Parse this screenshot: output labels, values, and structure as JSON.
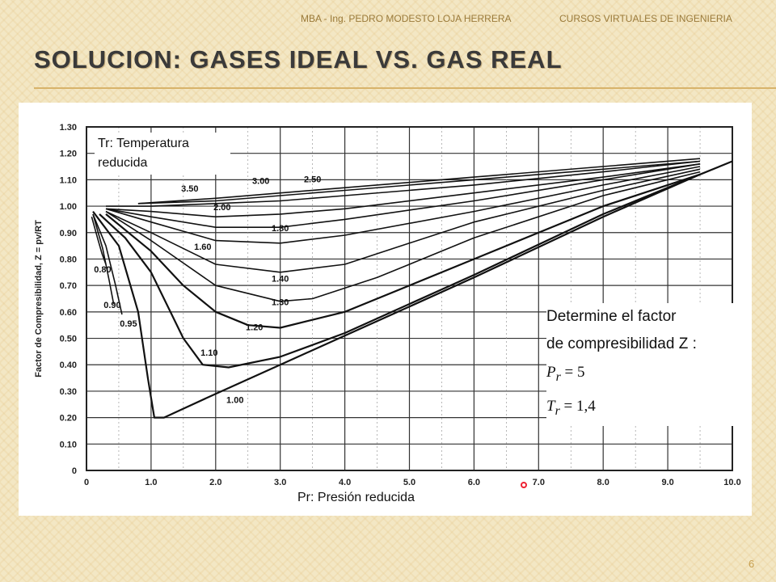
{
  "header": {
    "author": "MBA - Ing. PEDRO MODESTO LOJA HERRERA",
    "course": "CURSOS VIRTUALES DE INGENIERIA"
  },
  "slide": {
    "title": "SOLUCION: GASES IDEAL VS. GAS REAL",
    "page_number": "6"
  },
  "callouts": {
    "tr_line1": "Tr: Temperatura",
    "tr_line2": "reducida",
    "pr_label": "Pr: Presión reducida"
  },
  "problem": {
    "line1": "Determine el factor",
    "line2": "de compresibilidad Z :",
    "pr_symbol": "P",
    "pr_sub": "r",
    "pr_value": "= 5",
    "tr_symbol": "T",
    "tr_sub": "r",
    "tr_value": "= 1,4"
  },
  "colors": {
    "slide_bg": "#f3e7c4",
    "accent": "#d8b36a",
    "title_text": "#3a3a3a",
    "cursor": "#e23333"
  },
  "chart_data": {
    "type": "line",
    "xlabel": "",
    "ylabel": "Factor de Compresibilidad, Z = pv/RT",
    "xlim": [
      0,
      10
    ],
    "ylim": [
      0,
      1.3
    ],
    "x_ticks": [
      "0",
      "1.0",
      "2.0",
      "3.0",
      "4.0",
      "5.0",
      "6.0",
      "7.0",
      "8.0",
      "9.0",
      "10.0"
    ],
    "y_ticks": [
      "0",
      "0.10",
      "0.20",
      "0.30",
      "0.40",
      "0.50",
      "0.60",
      "0.70",
      "0.80",
      "0.90",
      "1.00",
      "1.10",
      "1.20",
      "1.30"
    ],
    "grid": true,
    "series": [
      {
        "name": "3.50",
        "x": [
          0.8,
          2.0,
          4.0,
          6.0,
          8.0,
          9.5
        ],
        "y": [
          1.01,
          1.03,
          1.07,
          1.11,
          1.15,
          1.18
        ]
      },
      {
        "name": "3.00",
        "x": [
          0.8,
          2.0,
          4.0,
          6.0,
          8.0,
          9.5
        ],
        "y": [
          1.01,
          1.02,
          1.06,
          1.1,
          1.14,
          1.17
        ]
      },
      {
        "name": "2.50",
        "x": [
          0.3,
          1.0,
          2.0,
          3.0,
          4.0,
          6.0,
          8.0,
          9.5
        ],
        "y": [
          1.0,
          1.0,
          1.01,
          1.02,
          1.04,
          1.08,
          1.13,
          1.17
        ]
      },
      {
        "name": "2.00",
        "x": [
          0.3,
          1.0,
          2.0,
          3.0,
          4.0,
          6.0,
          8.0,
          9.5
        ],
        "y": [
          0.99,
          0.98,
          0.96,
          0.97,
          0.99,
          1.05,
          1.11,
          1.16
        ]
      },
      {
        "name": "1.80",
        "x": [
          0.3,
          1.0,
          2.0,
          3.0,
          4.0,
          6.0,
          8.0,
          9.5
        ],
        "y": [
          0.99,
          0.96,
          0.92,
          0.92,
          0.95,
          1.02,
          1.1,
          1.16
        ]
      },
      {
        "name": "1.60",
        "x": [
          0.3,
          1.0,
          2.0,
          3.0,
          4.0,
          6.0,
          8.0,
          9.5
        ],
        "y": [
          0.99,
          0.94,
          0.87,
          0.86,
          0.89,
          0.98,
          1.08,
          1.15
        ]
      },
      {
        "name": "1.40",
        "x": [
          0.3,
          1.0,
          2.0,
          3.0,
          4.0,
          5.0,
          6.0,
          8.0,
          9.5
        ],
        "y": [
          0.98,
          0.9,
          0.78,
          0.75,
          0.78,
          0.86,
          0.94,
          1.06,
          1.14
        ]
      },
      {
        "name": "1.30",
        "x": [
          0.3,
          1.0,
          2.0,
          3.0,
          3.5,
          4.5,
          6.0,
          8.0,
          9.5
        ],
        "y": [
          0.98,
          0.87,
          0.7,
          0.64,
          0.65,
          0.73,
          0.88,
          1.04,
          1.13
        ]
      },
      {
        "name": "1.20",
        "x": [
          0.3,
          1.0,
          1.5,
          2.0,
          2.5,
          3.0,
          4.0,
          6.0,
          8.0,
          9.5
        ],
        "y": [
          0.97,
          0.83,
          0.7,
          0.6,
          0.55,
          0.54,
          0.6,
          0.8,
          1.0,
          1.12
        ]
      },
      {
        "name": "1.10",
        "x": [
          0.2,
          0.6,
          1.0,
          1.5,
          1.8,
          2.2,
          3.0,
          4.0,
          6.0,
          8.0,
          9.5
        ],
        "y": [
          0.97,
          0.88,
          0.75,
          0.5,
          0.4,
          0.39,
          0.43,
          0.52,
          0.74,
          0.97,
          1.12
        ]
      },
      {
        "name": "1.00",
        "x": [
          0.1,
          0.5,
          0.8,
          0.95,
          1.05,
          1.2,
          2.0,
          3.0,
          4.0,
          6.0,
          8.0,
          9.5,
          10.0
        ],
        "y": [
          0.98,
          0.85,
          0.6,
          0.35,
          0.2,
          0.2,
          0.29,
          0.4,
          0.51,
          0.73,
          0.96,
          1.12,
          1.17
        ]
      },
      {
        "name": "0.95",
        "x": [
          0.1,
          0.3,
          0.45,
          0.55
        ],
        "y": [
          0.97,
          0.85,
          0.7,
          0.59
        ]
      },
      {
        "name": "0.90",
        "x": [
          0.1,
          0.25,
          0.35,
          0.42
        ],
        "y": [
          0.97,
          0.84,
          0.72,
          0.63
        ]
      },
      {
        "name": "0.80",
        "x": [
          0.08,
          0.17,
          0.24,
          0.3
        ],
        "y": [
          0.96,
          0.88,
          0.82,
          0.78
        ]
      }
    ]
  }
}
